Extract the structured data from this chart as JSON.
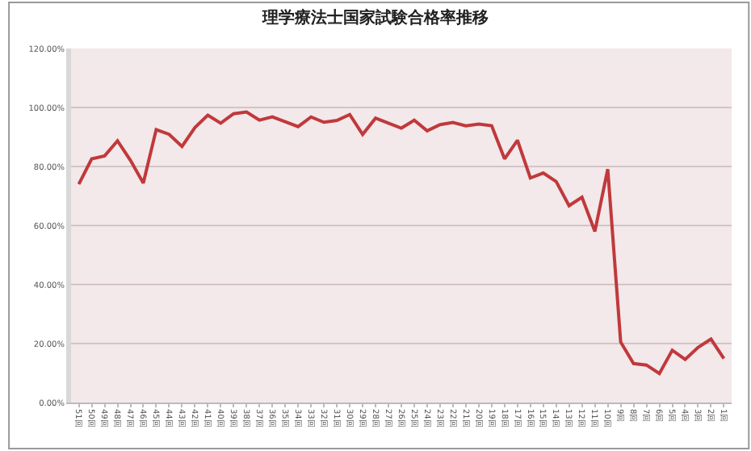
{
  "chart_data": {
    "type": "line",
    "title": "理学療法士国家試験合格率推移",
    "categories": [
      "51回",
      "50回",
      "49回",
      "48回",
      "47回",
      "46回",
      "45回",
      "44回",
      "43回",
      "42回",
      "41回",
      "40回",
      "39回",
      "38回",
      "37回",
      "36回",
      "35回",
      "34回",
      "33回",
      "32回",
      "31回",
      "30回",
      "29回",
      "28回",
      "27回",
      "26回",
      "25回",
      "24回",
      "23回",
      "22回",
      "21回",
      "20回",
      "19回",
      "18回",
      "17回",
      "16回",
      "15回",
      "14回",
      "13回",
      "12回",
      "11回",
      "10回",
      "9回",
      "8回",
      "7回",
      "6回",
      "5回",
      "4回",
      "3回",
      "2回",
      "1回"
    ],
    "series": [
      {
        "color": "#c0393b",
        "values": [
          74.0,
          82.6,
          83.6,
          88.7,
          82.1,
          74.4,
          92.5,
          90.9,
          86.8,
          93.2,
          97.4,
          94.7,
          97.9,
          98.5,
          95.7,
          96.8,
          95.2,
          93.5,
          96.8,
          95.0,
          95.6,
          97.6,
          90.9,
          96.4,
          94.7,
          93.0,
          95.7,
          92.1,
          94.2,
          94.9,
          93.8,
          94.4,
          93.8,
          82.6,
          88.9,
          76.1,
          77.8,
          74.9,
          66.7,
          69.6,
          58.0,
          79.1,
          20.5,
          13.2,
          12.7,
          9.8,
          17.7,
          14.6,
          18.7,
          21.5,
          14.9
        ]
      }
    ],
    "ylim": [
      0,
      120
    ],
    "yticks": [
      {
        "value": 0,
        "label": "0.00%"
      },
      {
        "value": 20,
        "label": "20.00%"
      },
      {
        "value": 40,
        "label": "40.00%"
      },
      {
        "value": 60,
        "label": "60.00%"
      },
      {
        "value": 80,
        "label": "80.00%"
      },
      {
        "value": 100,
        "label": "100.00%"
      },
      {
        "value": 120,
        "label": "120.00%"
      }
    ],
    "grid": "y",
    "legend": false,
    "marker": "none",
    "line_style": "solid"
  }
}
